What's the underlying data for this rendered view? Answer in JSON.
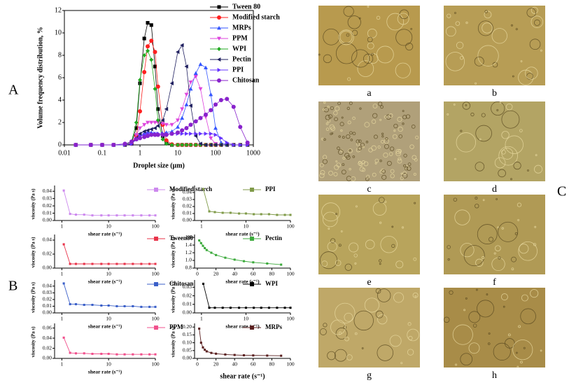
{
  "panels": [
    "A",
    "B",
    "C"
  ],
  "micrographs": {
    "labels": [
      "a",
      "b",
      "c",
      "d",
      "e",
      "f",
      "g",
      "h"
    ]
  },
  "chart_data": [
    {
      "type": "line",
      "xlabel": "Droplet size (μm)",
      "ylabel": "Volume frequency distribution, %",
      "xscale": "log",
      "xlim": [
        0.01,
        1000
      ],
      "xticks": [
        0.01,
        0.1,
        1,
        10,
        100,
        1000
      ],
      "ylim": [
        0,
        12
      ],
      "yticks": [
        0,
        2,
        4,
        6,
        8,
        10,
        12
      ],
      "legend": "upper right",
      "x": [
        0.02,
        0.05,
        0.1,
        0.2,
        0.4,
        0.6,
        0.8,
        1,
        1.3,
        1.6,
        2,
        2.5,
        3,
        4,
        5,
        7,
        10,
        13,
        17,
        22,
        30,
        40,
        55,
        75,
        100,
        140,
        200,
        300,
        450,
        700
      ],
      "series": [
        {
          "name": "Tween 80",
          "color": "#000000",
          "marker": "square",
          "values": [
            0,
            0,
            0,
            0,
            0,
            0.2,
            1.5,
            5.5,
            9.5,
            10.9,
            10.7,
            7,
            3.2,
            0.8,
            0.2,
            0,
            0,
            0,
            0,
            0,
            0,
            0,
            0,
            0,
            0,
            0,
            0,
            0,
            0,
            0
          ]
        },
        {
          "name": "Modified starch",
          "color": "#ff2020",
          "marker": "circle",
          "values": [
            0,
            0,
            0,
            0,
            0,
            0.1,
            0.8,
            3,
            6.5,
            8.8,
            9.3,
            8.3,
            5.2,
            1.8,
            0.4,
            0.05,
            0,
            0,
            0,
            0,
            0,
            0,
            0,
            0,
            0,
            0,
            0,
            0,
            0,
            0
          ]
        },
        {
          "name": "MRPs",
          "color": "#3355ff",
          "marker": "triangle-up",
          "values": [
            0,
            0,
            0,
            0,
            0,
            0.1,
            0.5,
            0.8,
            1,
            1.1,
            1.1,
            1,
            1,
            1,
            1.1,
            1.2,
            1.6,
            2.4,
            3.6,
            5,
            6.4,
            7.2,
            6.9,
            4.5,
            1.5,
            0.2,
            0,
            0,
            0,
            0
          ]
        },
        {
          "name": "PPM",
          "color": "#dd44dd",
          "marker": "triangle-down",
          "values": [
            0,
            0,
            0,
            0,
            0,
            0.2,
            0.9,
            1.5,
            1.8,
            2,
            2,
            2,
            2,
            1.9,
            1.8,
            1.8,
            2.2,
            3.2,
            4.5,
            5.6,
            6.1,
            5,
            2.5,
            0.6,
            0.1,
            0,
            0,
            0,
            0,
            0
          ]
        },
        {
          "name": "WPI",
          "color": "#22aa22",
          "marker": "diamond",
          "values": [
            0,
            0,
            0,
            0,
            0,
            0.3,
            2,
            5.8,
            8,
            8.4,
            7.6,
            5,
            2.2,
            0.5,
            0.1,
            0,
            0,
            0,
            0,
            0,
            0,
            0,
            0,
            0,
            0,
            0,
            0,
            0,
            0,
            0
          ]
        },
        {
          "name": "Pectin",
          "color": "#202060",
          "marker": "triangle-left",
          "values": [
            0,
            0,
            0,
            0,
            0,
            0.1,
            0.6,
            1,
            1.2,
            1.3,
            1.4,
            1.5,
            1.7,
            2.2,
            3.2,
            5.5,
            8.3,
            8.9,
            7,
            3.5,
            0.8,
            0.1,
            0,
            0,
            0,
            0,
            0,
            0,
            0,
            0
          ]
        },
        {
          "name": "PPI",
          "color": "#6633ff",
          "marker": "triangle-right",
          "values": [
            0,
            0,
            0,
            0,
            0,
            0.1,
            0.5,
            0.8,
            0.9,
            1,
            1,
            1,
            1,
            1,
            1,
            1,
            1,
            1,
            1,
            1,
            1,
            1,
            1,
            1,
            0.9,
            0.6,
            0.2,
            0,
            0,
            0
          ]
        },
        {
          "name": "Chitosan",
          "color": "#8822cc",
          "marker": "circle",
          "values": [
            0,
            0,
            0,
            0,
            0.1,
            0.3,
            0.5,
            0.6,
            0.7,
            0.8,
            0.9,
            0.9,
            0.9,
            0.9,
            0.9,
            1,
            1.1,
            1.3,
            1.5,
            1.8,
            2.1,
            2.4,
            2.7,
            3.1,
            3.6,
            4,
            4.1,
            3.4,
            1.6,
            0.2
          ]
        }
      ]
    },
    {
      "type": "line",
      "xlabel": "shear rate (s⁻¹)",
      "ylabel": "viscosity (Pa s)",
      "xscale": "log",
      "xlim": [
        0.7,
        100
      ],
      "xticks": [
        1,
        10,
        100
      ],
      "ylim": [
        0,
        0.045
      ],
      "yticks": [
        {
          "value": 0,
          "label": "0.00"
        },
        0.01,
        0.02,
        0.03,
        0.04
      ],
      "x": [
        1.1,
        1.5,
        2,
        3,
        4.5,
        7,
        10,
        15,
        22,
        33,
        50,
        75,
        100
      ],
      "series": [
        {
          "name": "Modified starch",
          "color": "#cc88ee",
          "marker": "square",
          "values": [
            0.041,
            0.009,
            0.008,
            0.008,
            0.007,
            0.007,
            0.007,
            0.007,
            0.007,
            0.007,
            0.007,
            0.007,
            0.007
          ]
        }
      ]
    },
    {
      "type": "line",
      "xlabel": "shear rate (s⁻¹)",
      "ylabel": "viscosity (Pa s)",
      "xscale": "log",
      "xlim": [
        0.7,
        100
      ],
      "xticks": [
        1,
        10,
        100
      ],
      "ylim": [
        0,
        0.047
      ],
      "yticks": [
        {
          "value": 0,
          "label": "0.00"
        },
        0.01,
        0.02,
        0.03,
        0.04
      ],
      "x": [
        1.1,
        1.5,
        2,
        3,
        4.5,
        7,
        10,
        15,
        22,
        33,
        50,
        75,
        100
      ],
      "series": [
        {
          "name": "PPI",
          "color": "#7f9a48",
          "marker": "square",
          "values": [
            0.045,
            0.013,
            0.012,
            0.011,
            0.011,
            0.01,
            0.01,
            0.009,
            0.009,
            0.009,
            0.008,
            0.008,
            0.008
          ]
        }
      ]
    },
    {
      "type": "line",
      "xlabel": "shear rate (s⁻¹)",
      "ylabel": "viscosity (Pa s)",
      "xscale": "log",
      "xlim": [
        0.7,
        100
      ],
      "xticks": [
        1,
        10,
        100
      ],
      "ylim": [
        0,
        0.045
      ],
      "yticks": [
        {
          "value": 0,
          "label": "0.00"
        },
        0.02,
        0.04
      ],
      "x": [
        1.1,
        1.5,
        2,
        3,
        4.5,
        7,
        10,
        15,
        22,
        33,
        50,
        75,
        100
      ],
      "series": [
        {
          "name": "Tween80",
          "color": "#e8334a",
          "marker": "square",
          "values": [
            0.034,
            0.006,
            0.006,
            0.006,
            0.006,
            0.006,
            0.006,
            0.006,
            0.006,
            0.006,
            0.006,
            0.006,
            0.006
          ]
        }
      ]
    },
    {
      "type": "line",
      "xlabel": "shear rate (s⁻¹)",
      "ylabel": "viscosity (Pa s)",
      "xscale": "linear",
      "xlim": [
        -3,
        100
      ],
      "xticks": [
        0,
        20,
        40,
        60,
        80,
        100
      ],
      "ylim": [
        0.8,
        1.62
      ],
      "yticks": [
        0.8,
        {
          "value": 1,
          "label": "1.0"
        },
        1.2,
        1.4,
        1.6
      ],
      "x": [
        2,
        4,
        6,
        8,
        10,
        15,
        20,
        30,
        40,
        50,
        60,
        75,
        90
      ],
      "series": [
        {
          "name": "Pectin",
          "color": "#3caa3c",
          "marker": "square",
          "values": [
            1.52,
            1.45,
            1.38,
            1.32,
            1.27,
            1.2,
            1.14,
            1.07,
            1.02,
            0.98,
            0.95,
            0.92,
            0.89
          ]
        }
      ]
    },
    {
      "type": "line",
      "xlabel": "shear rate (s⁻¹)",
      "ylabel": "viscosity (Pa s)",
      "xscale": "log",
      "xlim": [
        0.7,
        100
      ],
      "xticks": [
        1,
        10,
        100
      ],
      "ylim": [
        0,
        0.046
      ],
      "yticks": [
        {
          "value": 0,
          "label": "0.00"
        },
        0.01,
        0.02,
        0.03,
        0.04
      ],
      "x": [
        1.1,
        1.5,
        2,
        3,
        4.5,
        7,
        10,
        15,
        22,
        33,
        50,
        75,
        100
      ],
      "series": [
        {
          "name": "Chitosan",
          "color": "#3a5fc8",
          "marker": "square",
          "values": [
            0.044,
            0.013,
            0.013,
            0.012,
            0.012,
            0.011,
            0.011,
            0.01,
            0.01,
            0.01,
            0.009,
            0.009,
            0.009
          ]
        }
      ]
    },
    {
      "type": "line",
      "xlabel": "shear rate (s⁻¹)",
      "ylabel": "viscosity (Pa s)",
      "xscale": "log",
      "xlim": [
        0.7,
        100
      ],
      "xticks": [
        1,
        10,
        100
      ],
      "ylim": [
        0,
        0.036
      ],
      "yticks": [
        {
          "value": 0,
          "label": "0.00"
        },
        0.01,
        0.02,
        0.03
      ],
      "x": [
        1.1,
        1.5,
        2,
        3,
        4.5,
        7,
        10,
        15,
        22,
        33,
        50,
        75,
        100
      ],
      "series": [
        {
          "name": "WPI",
          "color": "#000000",
          "marker": "square",
          "values": [
            0.034,
            0.006,
            0.006,
            0.006,
            0.006,
            0.006,
            0.006,
            0.006,
            0.006,
            0.006,
            0.006,
            0.006,
            0.006
          ]
        }
      ]
    },
    {
      "type": "line",
      "xlabel": "shear rate (s⁻¹)",
      "ylabel": "viscosity (Pa s)",
      "xscale": "log",
      "xlim": [
        0.7,
        100
      ],
      "xticks": [
        1,
        10,
        100
      ],
      "ylim": [
        0,
        0.065
      ],
      "yticks": [
        {
          "value": 0,
          "label": "0.00"
        },
        0.02,
        0.04,
        0.06
      ],
      "x": [
        1.1,
        1.5,
        2,
        3,
        4.5,
        7,
        10,
        15,
        22,
        33,
        50,
        75,
        100
      ],
      "series": [
        {
          "name": "PPM",
          "color": "#f0508c",
          "marker": "square",
          "values": [
            0.041,
            0.011,
            0.01,
            0.01,
            0.009,
            0.009,
            0.009,
            0.008,
            0.008,
            0.008,
            0.008,
            0.008,
            0.008
          ]
        }
      ]
    },
    {
      "type": "line",
      "xlabel": "shear rate (s⁻¹)",
      "ylabel": "viscosity (Pa s)",
      "xscale": "linear",
      "xlim": [
        -3,
        100
      ],
      "xticks": [
        0,
        20,
        40,
        60,
        80,
        100
      ],
      "ylim": [
        0,
        0.21
      ],
      "yticks": [
        {
          "value": 0,
          "label": "0.00"
        },
        0.05,
        {
          "value": 0.1,
          "label": "0.10"
        },
        0.15,
        {
          "value": 0.2,
          "label": "0.20"
        }
      ],
      "x": [
        2,
        4,
        6,
        8,
        10,
        15,
        20,
        30,
        40,
        50,
        60,
        75,
        90
      ],
      "series": [
        {
          "name": "MRPs",
          "color": "#5a2020",
          "marker": "square",
          "values": [
            0.19,
            0.1,
            0.07,
            0.055,
            0.045,
            0.035,
            0.03,
            0.025,
            0.022,
            0.02,
            0.019,
            0.018,
            0.017
          ]
        }
      ]
    }
  ]
}
